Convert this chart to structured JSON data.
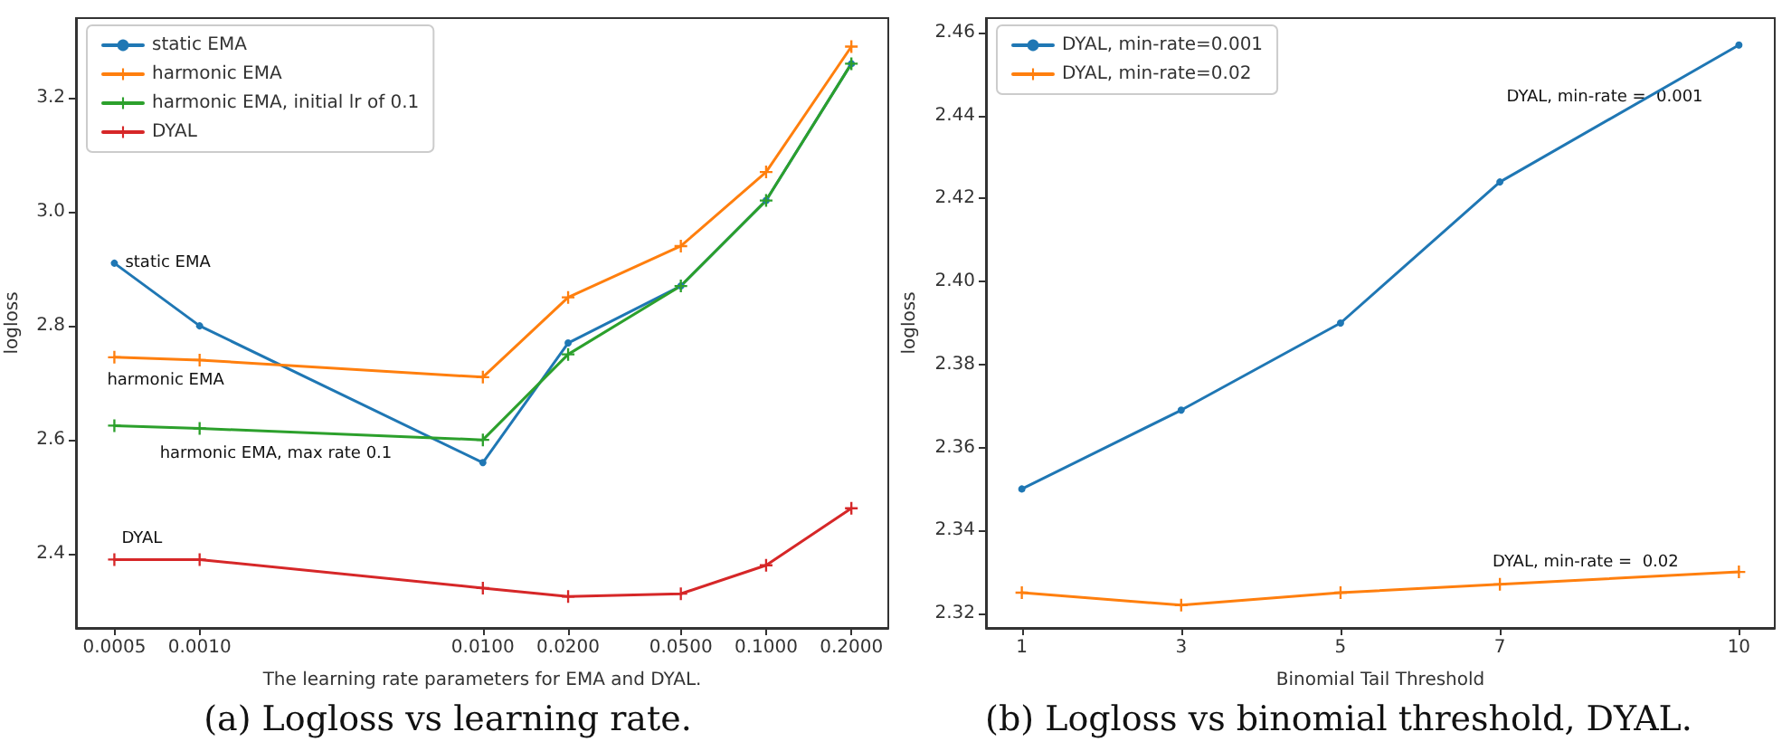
{
  "chart_data": [
    {
      "type": "line",
      "xlabel": "The learning rate parameters for EMA and DYAL.",
      "ylabel": "logloss",
      "log": "x",
      "x": [
        0.0005,
        0.001,
        0.01,
        0.02,
        0.05,
        0.1,
        0.2
      ],
      "xlim": [
        0.000366,
        0.27
      ],
      "xticks": [
        {
          "value": 0.0005,
          "label": "0.0005"
        },
        {
          "value": 0.001,
          "label": "0.0010"
        },
        {
          "value": 0.01,
          "label": "0.0100"
        },
        {
          "value": 0.02,
          "label": "0.0200"
        },
        {
          "value": 0.05,
          "label": "0.0500"
        },
        {
          "value": 0.1,
          "label": "0.1000"
        },
        {
          "value": 0.2,
          "label": "0.2000"
        }
      ],
      "ylim": [
        2.27,
        3.34
      ],
      "yticks": [
        {
          "value": 2.4,
          "label": "2.4"
        },
        {
          "value": 2.6,
          "label": "2.6"
        },
        {
          "value": 2.8,
          "label": "2.8"
        },
        {
          "value": 3.0,
          "label": "3.0"
        },
        {
          "value": 3.2,
          "label": "3.2"
        }
      ],
      "legend": "top left",
      "grid": false,
      "line_style": "solid",
      "series": [
        {
          "name": "static EMA",
          "color": "#1f77b4",
          "marker": "circle",
          "values": [
            2.91,
            2.8,
            2.56,
            2.77,
            2.87,
            3.02,
            3.26
          ]
        },
        {
          "name": "harmonic EMA",
          "color": "#ff7f0e",
          "marker": "cross",
          "values": [
            2.745,
            2.74,
            2.71,
            2.85,
            2.94,
            3.07,
            3.29
          ]
        },
        {
          "name": "harmonic EMA, initial lr of 0.1",
          "color": "#2ca02c",
          "marker": "cross",
          "values": [
            2.625,
            2.62,
            2.6,
            2.75,
            2.87,
            3.02,
            3.26
          ]
        },
        {
          "name": "DYAL",
          "color": "#d62728",
          "marker": "cross",
          "values": [
            2.39,
            2.39,
            2.34,
            2.325,
            2.33,
            2.38,
            2.48
          ]
        }
      ],
      "annotations": [
        {
          "text": "static EMA",
          "x": 0.0005,
          "y": 2.91
        },
        {
          "text": "harmonic EMA",
          "x": 0.0005,
          "y": 2.745
        },
        {
          "text": "harmonic EMA, max rate 0.1",
          "x": 0.001,
          "y": 2.62
        },
        {
          "text": "DYAL",
          "x": 0.0005,
          "y": 2.39
        }
      ],
      "title": "(a) Logloss vs learning rate."
    },
    {
      "type": "line",
      "xlabel": "Binomial Tail Threshold",
      "ylabel": "logloss",
      "x": [
        1,
        3,
        5,
        7,
        10
      ],
      "xlim": [
        0.55,
        10.45
      ],
      "xticks": [
        1,
        3,
        5,
        7,
        10
      ],
      "ylim": [
        2.3165,
        2.4635
      ],
      "yticks": [
        {
          "value": 2.32,
          "label": "2.32"
        },
        {
          "value": 2.34,
          "label": "2.34"
        },
        {
          "value": 2.36,
          "label": "2.36"
        },
        {
          "value": 2.38,
          "label": "2.38"
        },
        {
          "value": 2.4,
          "label": "2.40"
        },
        {
          "value": 2.42,
          "label": "2.42"
        },
        {
          "value": 2.44,
          "label": "2.44"
        },
        {
          "value": 2.46,
          "label": "2.46"
        }
      ],
      "legend": "top left",
      "grid": false,
      "line_style": "solid",
      "series": [
        {
          "name": "DYAL, min-rate=0.001",
          "color": "#1f77b4",
          "marker": "circle",
          "values": [
            2.35,
            2.369,
            2.39,
            2.424,
            2.457
          ]
        },
        {
          "name": "DYAL, min-rate=0.02",
          "color": "#ff7f0e",
          "marker": "cross",
          "values": [
            2.325,
            2.322,
            2.325,
            2.327,
            2.33
          ]
        }
      ],
      "annotations": [
        "DYAL, min-rate =  0.001",
        {
          "text": "DYAL, min-rate =  0.02",
          "x": 7,
          "y": 2.327
        }
      ],
      "title": "(b) Logloss vs binomial threshold, DYAL."
    }
  ]
}
